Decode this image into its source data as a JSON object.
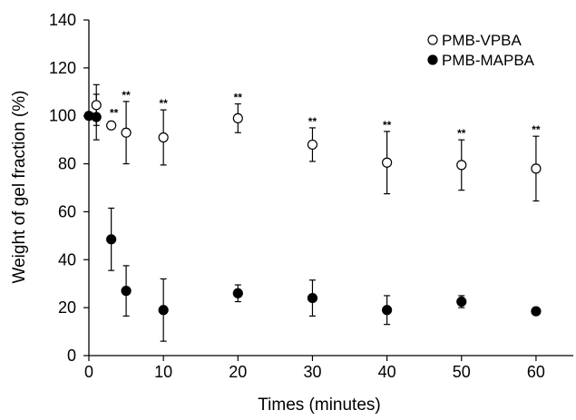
{
  "chart_data": {
    "type": "scatter",
    "title": "",
    "xlabel": "Times (minutes)",
    "ylabel": "Weight of gel fraction (%)",
    "xlim": [
      0,
      65
    ],
    "ylim": [
      0,
      140
    ],
    "xticks": [
      0,
      10,
      20,
      30,
      40,
      50,
      60
    ],
    "yticks": [
      0,
      20,
      40,
      60,
      80,
      100,
      120,
      140
    ],
    "grid": false,
    "legend_position": "top-right",
    "series": [
      {
        "name": "PMB-VPBA",
        "marker": "open-circle",
        "x": [
          1,
          3,
          5,
          10,
          20,
          30,
          40,
          50,
          60
        ],
        "y": [
          104.5,
          96,
          93,
          91,
          99,
          88,
          80.5,
          79.5,
          78
        ],
        "err": [
          8.5,
          1.5,
          13,
          11.5,
          6,
          7,
          13,
          10.5,
          13.5
        ]
      },
      {
        "name": "PMB-MAPBA",
        "marker": "filled-circle",
        "x": [
          0,
          1,
          3,
          5,
          10,
          20,
          30,
          40,
          50,
          60
        ],
        "y": [
          100,
          99.5,
          48.5,
          27,
          19,
          26,
          24,
          19,
          22.5,
          18.5
        ],
        "err": [
          0,
          9.5,
          13,
          10.5,
          13,
          3.5,
          7.5,
          6,
          2.5,
          0
        ]
      }
    ],
    "annotations": [
      {
        "text": "**",
        "x": 3
      },
      {
        "text": "**",
        "x": 5
      },
      {
        "text": "**",
        "x": 10
      },
      {
        "text": "**",
        "x": 20
      },
      {
        "text": "**",
        "x": 30
      },
      {
        "text": "**",
        "x": 40
      },
      {
        "text": "**",
        "x": 50
      },
      {
        "text": "**",
        "x": 60
      }
    ]
  }
}
